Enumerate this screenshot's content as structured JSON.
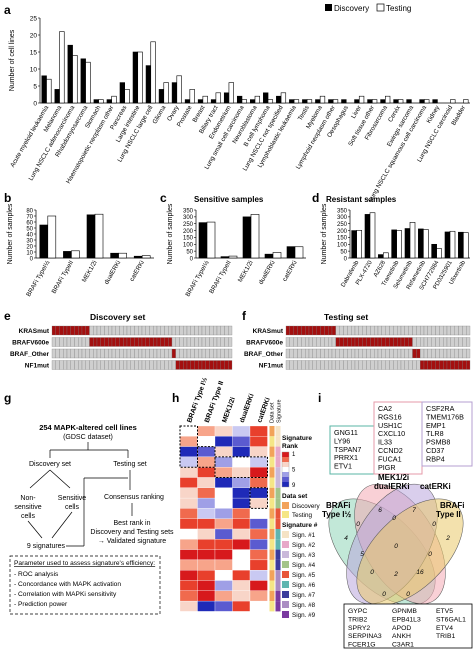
{
  "panels": {
    "a": "a",
    "b": "b",
    "c": "c",
    "d": "d",
    "e": "e",
    "f": "f",
    "g": "g",
    "h": "h",
    "i": "i"
  },
  "colors": {
    "discovery": "#000000",
    "testing": "#ffffff",
    "mut": "#a30f0f",
    "wt": "#cfcfcf"
  },
  "chart_data": [
    {
      "id": "a",
      "type": "bar",
      "ylabel": "Number of cell lines",
      "ylim": [
        0,
        25
      ],
      "yticks": [
        0,
        5,
        10,
        15,
        20,
        25
      ],
      "legend": "top-right",
      "categories": [
        "Acute myeloid leukaemia",
        "Melanoma",
        "Lung NSCLC adenocarcinoma",
        "Rhabdomyosarcoma",
        "Stomach",
        "Haematopoietic neoplasm other",
        "Pancreas",
        "Large intestine",
        "Lung NSCLC large cell",
        "Glioma",
        "Ovary",
        "Prostate",
        "Breast",
        "Biliary tract",
        "Endometrium",
        "Lung small cell carcinoma",
        "Neuroblastoma",
        "B cell lymphoma",
        "Lung NSCLC not specified",
        "Lymphoblastic leukaemia",
        "Testis",
        "Myeloma",
        "Lymphoid neoplasm other",
        "Oesophagus",
        "Liver",
        "Soft tissue other",
        "Fibrosarcoma",
        "Cervix",
        "Ewings sarcoma",
        "Lung NSCLC squamous cell carcinoma",
        "Kidney",
        "Lung NSCLC carcinoid",
        "Bladder"
      ],
      "series": [
        {
          "name": "Discovery",
          "values": [
            8,
            4,
            17,
            13,
            1,
            1,
            6,
            15,
            11,
            4,
            6,
            1,
            1,
            1,
            3,
            2,
            1,
            3,
            2,
            1,
            1,
            1,
            1,
            1,
            1,
            1,
            1,
            1,
            1,
            1,
            1,
            0,
            0
          ]
        },
        {
          "name": "Testing",
          "values": [
            7,
            21,
            14,
            12,
            1,
            2,
            4,
            15,
            18,
            6,
            8,
            4,
            2,
            3,
            6,
            1,
            2,
            1,
            3,
            1,
            1,
            2,
            1,
            0,
            2,
            1,
            2,
            1,
            0,
            1,
            0,
            1,
            1
          ]
        }
      ]
    },
    {
      "id": "b",
      "type": "bar",
      "title": "Sensitive samples",
      "ylabel": "Number of samples",
      "ylim": [
        0,
        80
      ],
      "yticks": [
        0,
        10,
        20,
        30,
        40,
        50,
        60,
        70,
        80
      ],
      "categories": [
        "BRAFi TypeI½",
        "BRAFi TypeII",
        "MEK1/2i",
        "dualERKi",
        "catERKi"
      ],
      "series": [
        {
          "name": "Discovery",
          "values": [
            55,
            11,
            72,
            8,
            3
          ]
        },
        {
          "name": "Testing",
          "values": [
            70,
            12,
            73,
            8,
            4
          ]
        }
      ]
    },
    {
      "id": "c",
      "type": "bar",
      "title": "Resistant samples",
      "ylabel": "Number of samples",
      "ylim": [
        0,
        350
      ],
      "yticks": [
        0,
        50,
        100,
        150,
        200,
        250,
        300,
        350
      ],
      "categories": [
        "BRAFi TypeI½",
        "BRAFi TypeII",
        "MEK1/2i",
        "dualERKi",
        "catERKi"
      ],
      "series": [
        {
          "name": "Discovery",
          "values": [
            258,
            10,
            300,
            28,
            83
          ]
        },
        {
          "name": "Testing",
          "values": [
            262,
            14,
            318,
            40,
            82
          ]
        }
      ]
    },
    {
      "id": "d",
      "type": "bar",
      "title": "Samples treated with a MAPKi",
      "ylabel": "Number of samples",
      "ylim": [
        0,
        350
      ],
      "yticks": [
        0,
        50,
        100,
        150,
        200,
        250,
        300,
        350
      ],
      "categories": [
        "Dabrafenib",
        "PLX-4720",
        "AZ628",
        "Trametinib",
        "Selumetinib",
        "Refametinib",
        "SCH772984",
        "PD0325901",
        "Ulixertinib"
      ],
      "series": [
        {
          "name": "Discovery",
          "values": [
            200,
            318,
            25,
            205,
            215,
            212,
            100,
            190,
            188
          ]
        },
        {
          "name": "Testing",
          "values": [
            202,
            330,
            38,
            200,
            260,
            208,
            68,
            195,
            185
          ]
        }
      ]
    }
  ],
  "legend": {
    "discovery": "Discovery",
    "testing": "Testing"
  },
  "mutation_panels": {
    "rows": [
      "KRASmut",
      "BRAFV600e",
      "BRAF_Other",
      "NF1mut"
    ],
    "discovery": {
      "title": "Discovery set",
      "cells": 48,
      "mut_ranges": [
        [
          0,
          10
        ],
        [
          10,
          32
        ],
        [
          32,
          33
        ],
        [
          33,
          48
        ]
      ]
    },
    "testing": {
      "title": "Testing set",
      "cells": 48,
      "mut_ranges": [
        [
          0,
          13
        ],
        [
          13,
          33
        ],
        [
          33,
          35
        ],
        [
          35,
          48
        ]
      ]
    }
  },
  "flowchart": {
    "start": "254 MAPK-altered cell lines",
    "start_sub": "(GDSC dataset)",
    "discovery": "Discovery set",
    "testing": "Testing set",
    "non_sensitive": "Non-sensitive cells",
    "sensitive": "Sensitive cells",
    "consensus": "Consensus ranking",
    "signatures": "9 signatures",
    "best_rank": "Best rank in Discovery and Testing sets",
    "validated": "→ Validated signature",
    "params_title": "Parameter used to assess signature's efficiency:",
    "params": [
      "ROC analysis",
      "Concordance with MAPK activation",
      "Correlation with MAPKi sensitivity",
      "Prediction power"
    ]
  },
  "heatmap": {
    "columns": [
      "BRAFi Type I½",
      "BRAFi Type II",
      "MEK1/2i",
      "dualERKi",
      "catERKi"
    ],
    "right_labels": [
      "Data set",
      "Signature"
    ],
    "legend_title": "Signature Rank",
    "legend_ticks": [
      "1",
      "5",
      "9"
    ],
    "dataset_title": "Data set",
    "dataset_items": [
      "Discovery",
      "Testing"
    ],
    "signature_title": "Signature #",
    "signature_items": [
      "Sign. #1",
      "Sign. #2",
      "Sign. #3",
      "Sign. #4",
      "Sign. #5",
      "Sign. #6",
      "Sign. #7",
      "Sign. #8",
      "Sign. #9"
    ],
    "signature_colors": [
      "#f5e3c5",
      "#e7a8c8",
      "#c9b8da",
      "#a3c48a",
      "#e8553a",
      "#5fb5b0",
      "#3b3b9c",
      "#aa8cc3",
      "#7a3aa0"
    ],
    "dataset_colors": [
      "#f2a35a",
      "#f5e686"
    ]
  },
  "venn": {
    "sets": [
      "BRAFi Type I½",
      "MEK1/2i dualERKi",
      "catERKi",
      "BRAFi Type II"
    ],
    "set_display": [
      "BRAFi\nType I½",
      "MEK1/2i\ndualERKi",
      "catERKi",
      "BRAFi\nType II"
    ],
    "counts": [
      "4",
      "6",
      "7",
      "2",
      "0",
      "0",
      "0",
      "5",
      "0",
      "0",
      "0",
      "2",
      "16",
      "0",
      "0"
    ],
    "genes_left": [
      "GNG11",
      "LY96",
      "TSPAN7",
      "PRRX1",
      "ETV1"
    ],
    "genes_mid": [
      "CA2",
      "RGS16",
      "USH1C",
      "CXCL10",
      "IL33",
      "CCND2",
      "FUCA1",
      "PIGR"
    ],
    "genes_right": [
      "CSF2RA",
      "TMEM176B",
      "EMP1",
      "TLR8",
      "PSMB8",
      "CD37",
      "RBP4"
    ],
    "genes_bottom": [
      [
        "GYPC",
        "TRIB2",
        "SPRY2",
        "SERPINA3",
        "FCER1G"
      ],
      [
        "GPNMB",
        "EPB41L3",
        "APOD",
        "ANKH",
        "C3AR1"
      ],
      [
        "ETV5",
        "ST6GAL1",
        "ETV4",
        "TRIB1"
      ]
    ]
  }
}
